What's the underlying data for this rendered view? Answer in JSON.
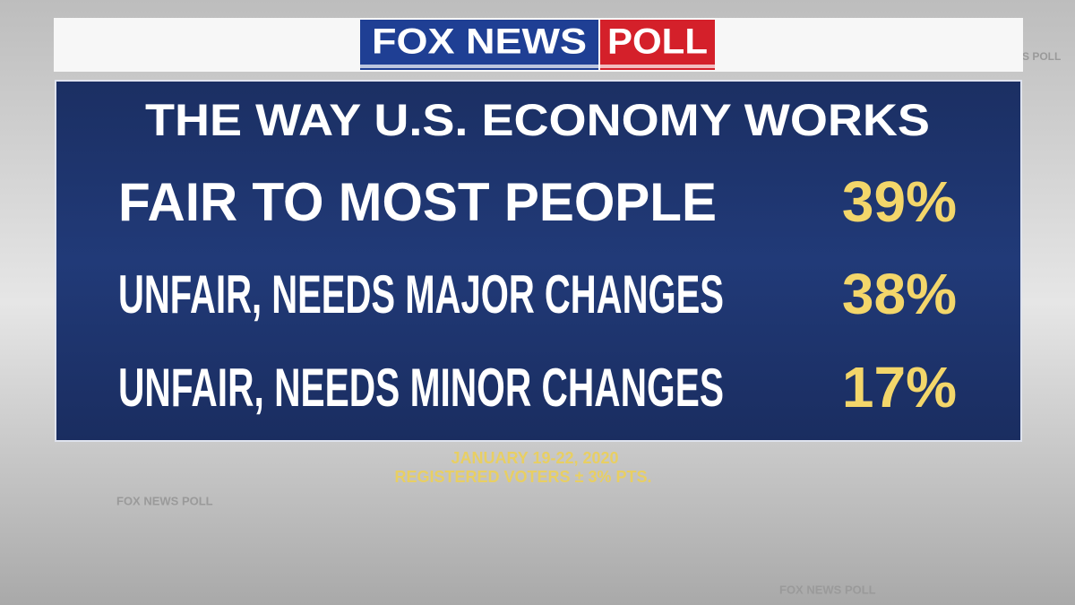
{
  "header": {
    "brand": "FOX NEWS",
    "badge": "POLL"
  },
  "title": "THE WAY U.S. ECONOMY WORKS",
  "rows": [
    {
      "label": "FAIR TO MOST PEOPLE",
      "value": "39%"
    },
    {
      "label": "UNFAIR, NEEDS MAJOR CHANGES",
      "value": "38%"
    },
    {
      "label": "UNFAIR, NEEDS MINOR CHANGES",
      "value": "17%"
    }
  ],
  "footer": {
    "dates": "JANUARY 19-22, 2020",
    "sample": "REGISTERED VOTERS ± 3% PTS."
  },
  "watermark": "FOX NEWS POLL"
}
